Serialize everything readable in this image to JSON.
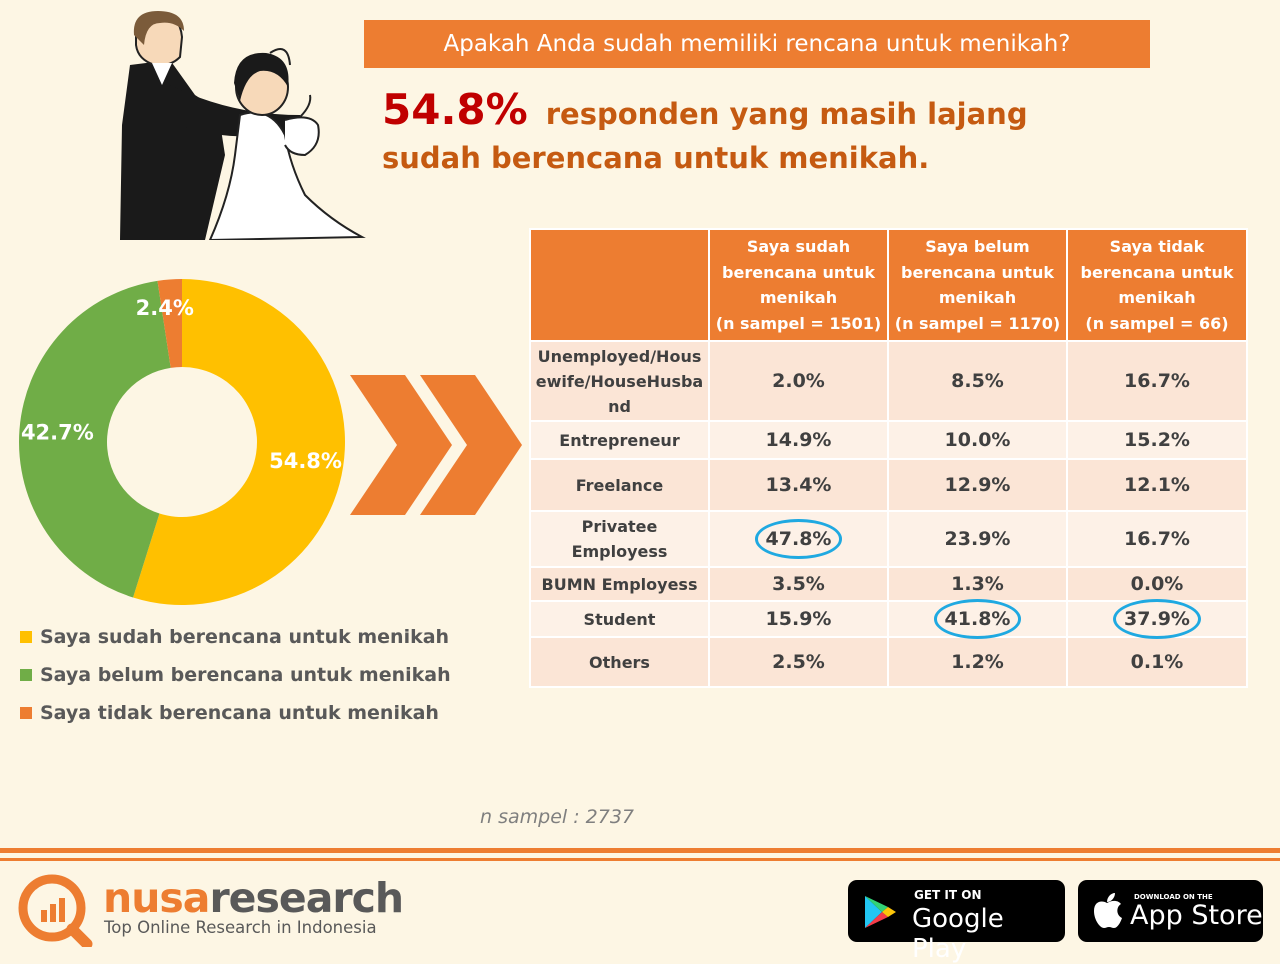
{
  "question": "Apakah Anda sudah memiliki rencana untuk menikah?",
  "headline": {
    "percent": "54.8%",
    "text": "responden yang masih lajang sudah berencana untuk menikah."
  },
  "colors": {
    "orange": "#ed7d31",
    "yellow": "#ffc000",
    "green": "#70ad47",
    "highlight": "#1fa9e1",
    "headline_red": "#c00000"
  },
  "chart_data": [
    {
      "type": "pie",
      "labels": [
        "Saya sudah berencana untuk menikah",
        "Saya belum berencana untuk menikah",
        "Saya tidak berencana untuk menikah"
      ],
      "values": [
        54.8,
        42.7,
        2.4
      ],
      "data_labels": [
        "54.8%",
        "42.7%",
        "2.4%"
      ],
      "colors": [
        "#ffc000",
        "#70ad47",
        "#ed7d31"
      ],
      "donut": true,
      "legend_position": "bottom"
    },
    {
      "type": "table",
      "columns": [
        "",
        "Saya sudah berencana untuk menikah (n sampel = 1501)",
        "Saya belum berencana untuk menikah (n sampel = 1170)",
        "Saya tidak berencana untuk menikah (n sampel = 66)"
      ],
      "rows": [
        [
          "Unemployed/Housewife/HouseHusband",
          "2.0%",
          "8.5%",
          "16.7%"
        ],
        [
          "Entrepreneur",
          "14.9%",
          "10.0%",
          "15.2%"
        ],
        [
          "Freelance",
          "13.4%",
          "12.9%",
          "12.1%"
        ],
        [
          "Privatee Employess",
          "47.8%",
          "23.9%",
          "16.7%"
        ],
        [
          "BUMN Employess",
          "3.5%",
          "1.3%",
          "0.0%"
        ],
        [
          "Student",
          "15.9%",
          "41.8%",
          "37.9%"
        ],
        [
          "Others",
          "2.5%",
          "1.2%",
          "0.1%"
        ]
      ],
      "highlighted": [
        "47.8%",
        "41.8%",
        "37.9%"
      ]
    }
  ],
  "table": {
    "headers": [
      {
        "l1": "Saya sudah",
        "l2": "berencana untuk",
        "l3": "menikah",
        "l4": "(n sampel = 1501)"
      },
      {
        "l1": "Saya belum",
        "l2": "berencana untuk",
        "l3": "menikah",
        "l4": "(n sampel = 1170)"
      },
      {
        "l1": "Saya tidak",
        "l2": "berencana untuk",
        "l3": "menikah",
        "l4": "(n sampel = 66)"
      }
    ],
    "row_label_first": {
      "l1": "Unemployed/Hous",
      "l2": "ewife/HouseHusba",
      "l3": "nd"
    },
    "rows": [
      {
        "label": "Unemployed/Housewife/HouseHusband",
        "v": [
          "2.0%",
          "8.5%",
          "16.7%"
        ]
      },
      {
        "label": "Entrepreneur",
        "v": [
          "14.9%",
          "10.0%",
          "15.2%"
        ]
      },
      {
        "label": "Freelance",
        "v": [
          "13.4%",
          "12.9%",
          "12.1%"
        ]
      },
      {
        "label": "Privatee Employess",
        "v": [
          "47.8%",
          "23.9%",
          "16.7%"
        ]
      },
      {
        "label": "BUMN Employess",
        "v": [
          "3.5%",
          "1.3%",
          "0.0%"
        ]
      },
      {
        "label": "Student",
        "v": [
          "15.9%",
          "41.8%",
          "37.9%"
        ]
      },
      {
        "label": "Others",
        "v": [
          "2.5%",
          "1.2%",
          "0.1%"
        ]
      }
    ]
  },
  "sample_note": "n sampel : 2737",
  "footer": {
    "brand_part1": "nusa",
    "brand_part2": "research",
    "tagline": "Top Online Research in Indonesia",
    "google_play_small": "GET IT ON",
    "google_play_big": "Google Play",
    "app_store_small": "DOWNLOAD ON THE",
    "app_store_big": "App Store",
    "icons": [
      "nusaresearch-logo-icon",
      "google-play-icon",
      "apple-icon"
    ]
  }
}
